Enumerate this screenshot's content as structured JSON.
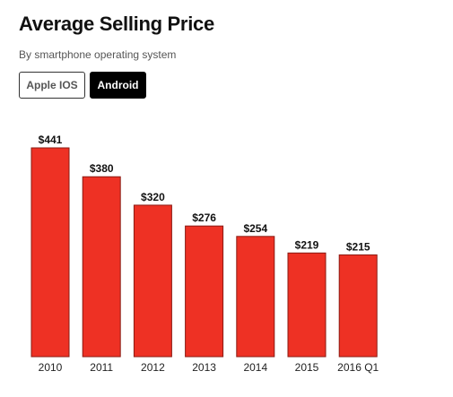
{
  "header": {
    "title": "Average Selling Price",
    "subtitle": "By smartphone operating system"
  },
  "toggles": {
    "ios_label": "Apple IOS",
    "android_label": "Android",
    "selected": "Android"
  },
  "colors": {
    "bar": "#ee3124",
    "selected_toggle_bg": "#000000"
  },
  "chart_data": {
    "type": "bar",
    "title": "Average Selling Price",
    "subtitle": "By smartphone operating system",
    "series": [
      {
        "values": [
          441,
          380,
          320,
          276,
          254,
          219,
          215
        ]
      }
    ],
    "categories": [
      "2010",
      "2011",
      "2012",
      "2013",
      "2014",
      "2015",
      "2016 Q1"
    ],
    "value_labels": [
      "$441",
      "$380",
      "$320",
      "$276",
      "$254",
      "$219",
      "$215"
    ],
    "xlabel": "",
    "ylabel": "",
    "ylim": [
      0,
      441
    ],
    "grid": false,
    "legend": "none"
  }
}
